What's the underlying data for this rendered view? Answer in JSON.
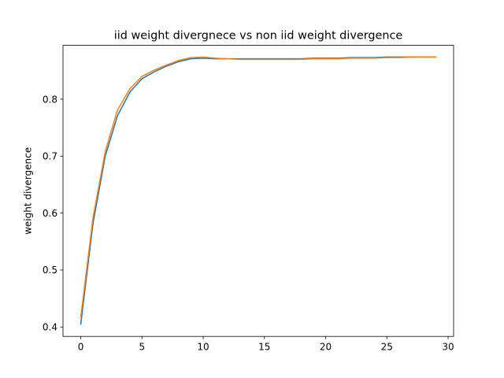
{
  "chart_data": {
    "type": "line",
    "title": "iid weight divergnece vs non iid weight divergence",
    "xlabel": "",
    "ylabel": "weight divergence",
    "xlim": [
      -1.45,
      30.45
    ],
    "ylim": [
      0.3835,
      0.8945
    ],
    "xticks": [
      0,
      5,
      10,
      15,
      20,
      25,
      30
    ],
    "xtick_labels": [
      "0",
      "5",
      "10",
      "15",
      "20",
      "25",
      "30"
    ],
    "yticks": [
      0.4,
      0.5,
      0.6,
      0.7,
      0.8
    ],
    "ytick_labels": [
      "0.4",
      "0.5",
      "0.6",
      "0.7",
      "0.8"
    ],
    "grid": false,
    "x": [
      0,
      1,
      2,
      3,
      4,
      5,
      6,
      7,
      8,
      9,
      10,
      11,
      12,
      13,
      14,
      15,
      16,
      17,
      18,
      19,
      20,
      21,
      22,
      23,
      24,
      25,
      26,
      27,
      28,
      29
    ],
    "series": [
      {
        "color": "#1f77b4",
        "values": [
          0.405,
          0.582,
          0.7,
          0.771,
          0.812,
          0.836,
          0.848,
          0.858,
          0.866,
          0.871,
          0.872,
          0.871,
          0.871,
          0.871,
          0.871,
          0.871,
          0.871,
          0.871,
          0.871,
          0.872,
          0.872,
          0.872,
          0.873,
          0.873,
          0.873,
          0.874,
          0.874,
          0.874,
          0.874,
          0.874
        ]
      },
      {
        "color": "#ff7f0e",
        "values": [
          0.417,
          0.592,
          0.708,
          0.781,
          0.818,
          0.84,
          0.851,
          0.86,
          0.868,
          0.873,
          0.874,
          0.872,
          0.871,
          0.87,
          0.87,
          0.87,
          0.87,
          0.87,
          0.87,
          0.871,
          0.871,
          0.871,
          0.872,
          0.872,
          0.872,
          0.873,
          0.873,
          0.874,
          0.874,
          0.874
        ]
      }
    ]
  }
}
